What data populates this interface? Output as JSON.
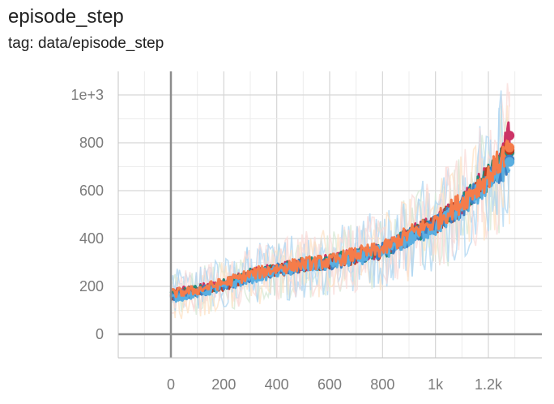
{
  "header": {
    "title": "episode_step",
    "subtitle": "tag: data/episode_step"
  },
  "chart_data": {
    "type": "line",
    "title": "episode_step",
    "subtitle": "tag: data/episode_step",
    "xlabel": "",
    "ylabel": "",
    "xlim": [
      -200,
      1400
    ],
    "ylim": [
      -100,
      1100
    ],
    "x_ticks": [
      {
        "value": 0,
        "label": "0"
      },
      {
        "value": 200,
        "label": "200"
      },
      {
        "value": 400,
        "label": "400"
      },
      {
        "value": 600,
        "label": "600"
      },
      {
        "value": 800,
        "label": "800"
      },
      {
        "value": 1000,
        "label": "1k"
      },
      {
        "value": 1200,
        "label": "1.2k"
      }
    ],
    "y_ticks": [
      {
        "value": 0,
        "label": "0"
      },
      {
        "value": 200,
        "label": "200"
      },
      {
        "value": 400,
        "label": "400"
      },
      {
        "value": 600,
        "label": "600"
      },
      {
        "value": 800,
        "label": "800"
      },
      {
        "value": 1000,
        "label": "1e+3"
      }
    ],
    "grid": true,
    "legend": "none",
    "series": [
      {
        "color": "#f57c4a",
        "x": [
          0,
          100,
          200,
          300,
          400,
          500,
          600,
          700,
          800,
          900,
          1000,
          1100,
          1200,
          1280
        ],
        "y": [
          170,
          185,
          215,
          250,
          275,
          295,
          305,
          335,
          355,
          420,
          470,
          555,
          660,
          780
        ]
      },
      {
        "color": "#bf3c1f",
        "x": [
          0,
          100,
          200,
          300,
          400,
          500,
          600,
          700,
          800,
          900,
          1000,
          1100,
          1200,
          1280
        ],
        "y": [
          160,
          180,
          205,
          245,
          265,
          290,
          300,
          325,
          345,
          410,
          460,
          540,
          650,
          770
        ]
      },
      {
        "color": "#3e7fc2",
        "x": [
          0,
          100,
          200,
          300,
          400,
          500,
          600,
          700,
          800,
          900,
          1000,
          1100,
          1200,
          1280
        ],
        "y": [
          155,
          178,
          200,
          240,
          268,
          288,
          298,
          322,
          350,
          405,
          455,
          535,
          640,
          730
        ]
      },
      {
        "color": "#5aaee0",
        "x": [
          0,
          100,
          200,
          300,
          400,
          500,
          600,
          700,
          800,
          900,
          1000,
          1100,
          1200,
          1280
        ],
        "y": [
          150,
          172,
          198,
          236,
          262,
          282,
          296,
          318,
          342,
          398,
          448,
          530,
          630,
          720
        ]
      },
      {
        "color": "#cc3366",
        "x": [
          0,
          100,
          200,
          300,
          400,
          500,
          600,
          700,
          800,
          900,
          1000,
          1100,
          1200,
          1280
        ],
        "y": [
          175,
          188,
          210,
          252,
          270,
          292,
          306,
          330,
          352,
          415,
          465,
          550,
          665,
          830
        ]
      },
      {
        "color": "#228b7a",
        "x": [
          0,
          100,
          200,
          300,
          400,
          500,
          600,
          700,
          800,
          900,
          1000,
          1100,
          1200,
          1280
        ],
        "y": [
          165,
          183,
          208,
          248,
          272,
          291,
          303,
          328,
          348,
          412,
          462,
          545,
          655,
          760
        ]
      }
    ]
  },
  "style": {
    "grid_color": "#d6d6d6",
    "axis_color": "#8c8c8c",
    "noise_colors": [
      "#aed6f1",
      "#fadbd8",
      "#d5e8d4",
      "#fde2c4"
    ]
  }
}
